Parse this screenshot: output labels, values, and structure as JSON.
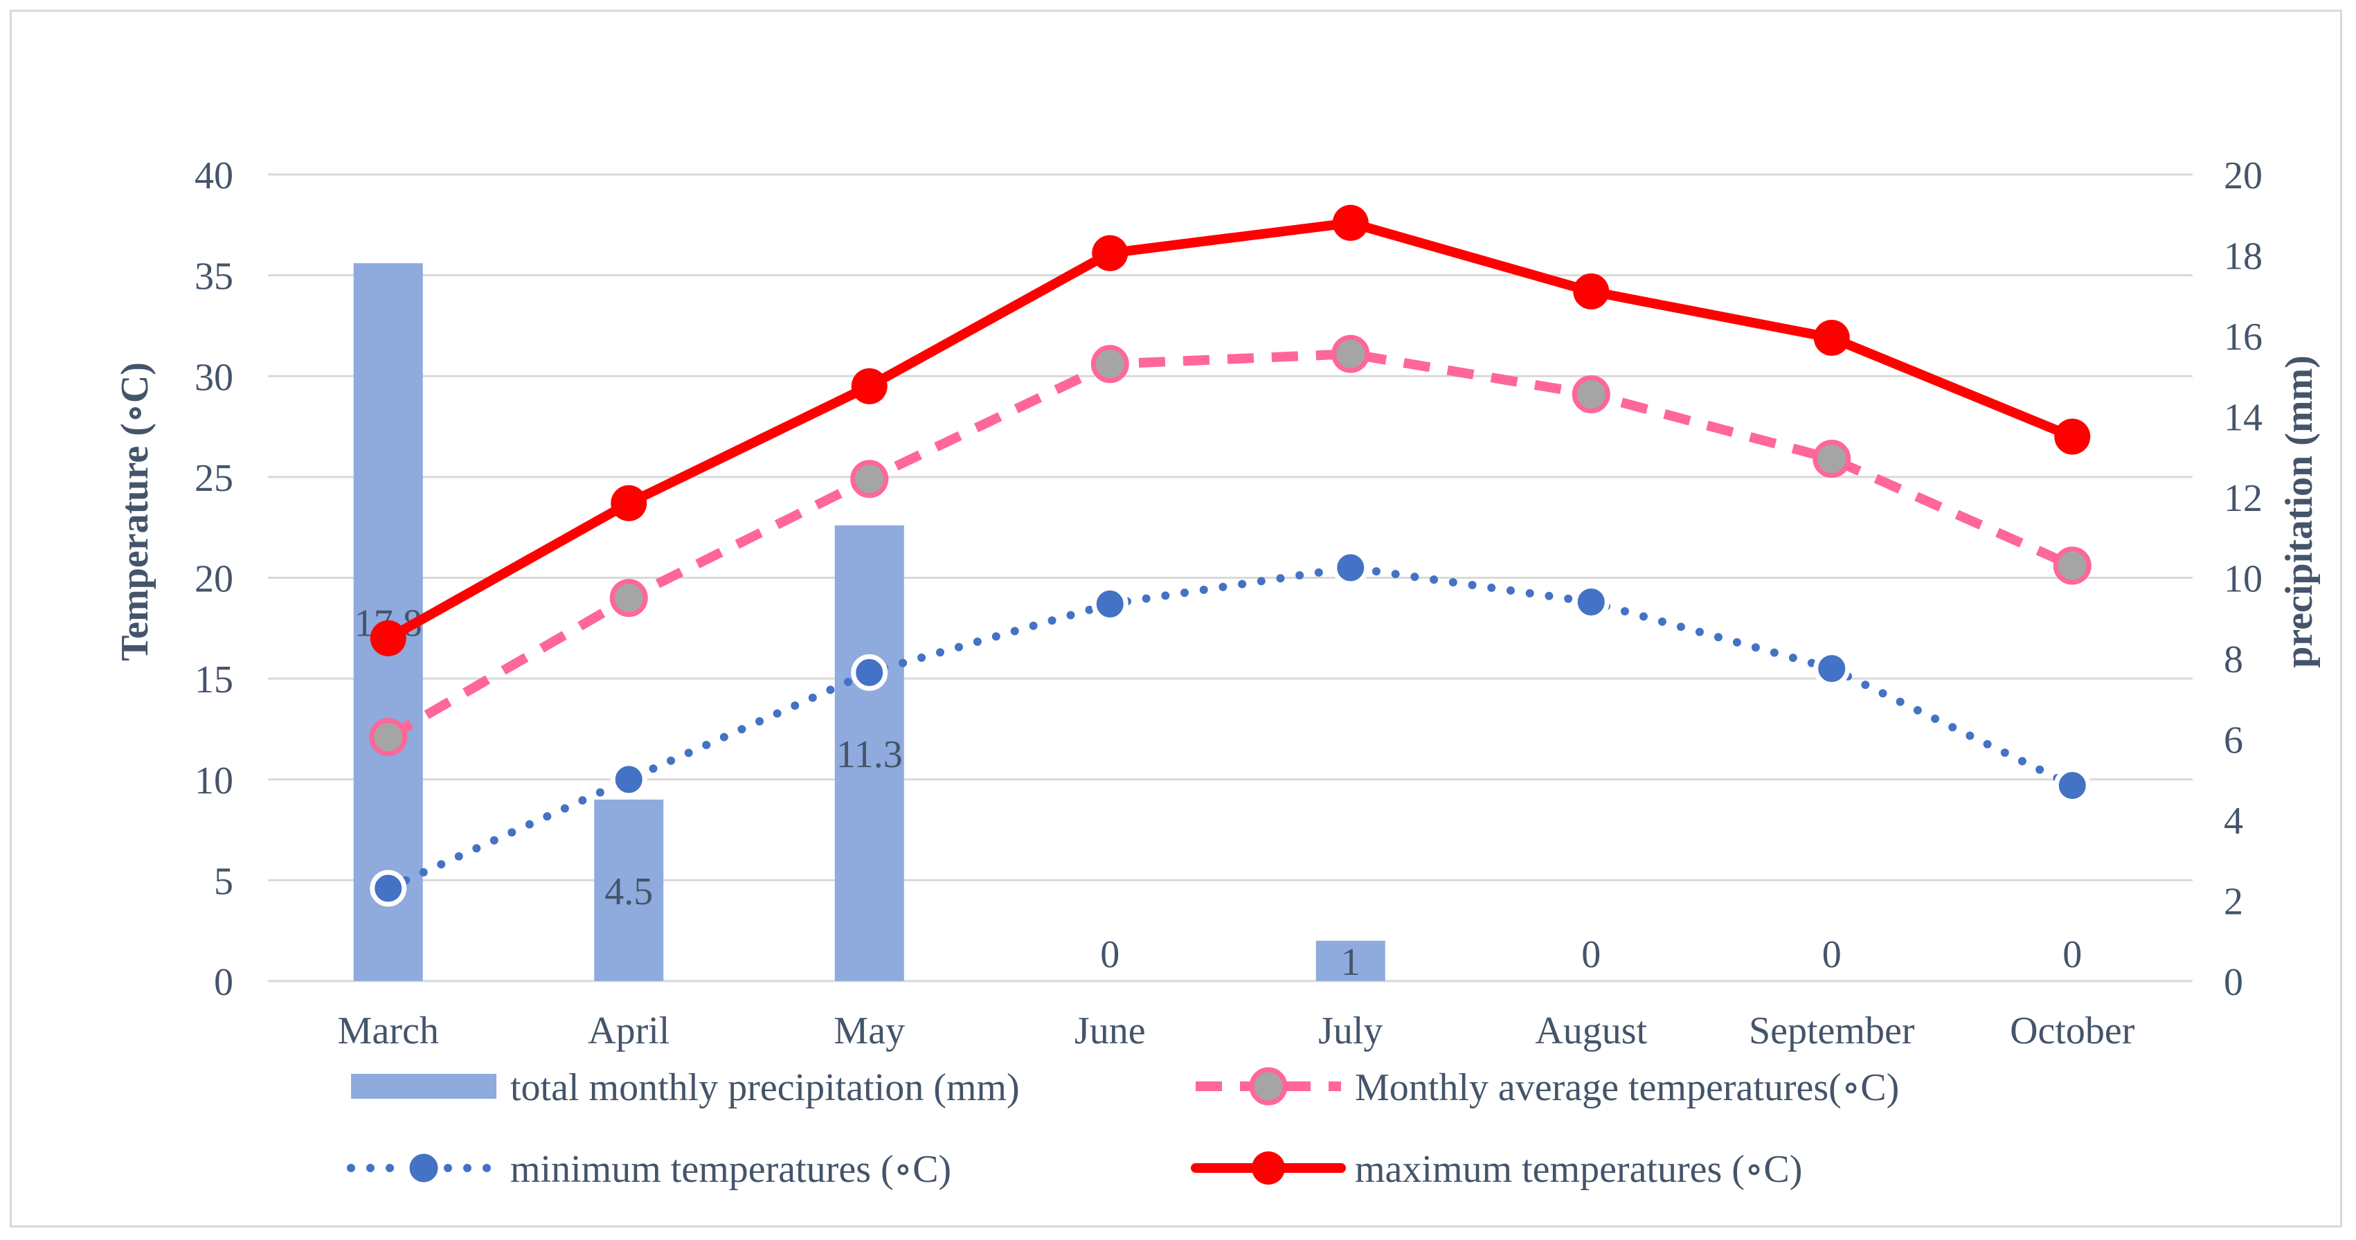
{
  "chart_data": {
    "type": "bar",
    "categories": [
      "March",
      "April",
      "May",
      "June",
      "July",
      "August",
      "September",
      "October"
    ],
    "y_left": {
      "label": "Temperature (∘C)",
      "range": [
        0,
        40
      ],
      "ticks": [
        "0",
        "5",
        "10",
        "15",
        "20",
        "25",
        "30",
        "35",
        "40"
      ]
    },
    "y_right": {
      "label": "precipitation (mm)",
      "range": [
        0,
        20
      ],
      "ticks": [
        "0",
        "2",
        "4",
        "6",
        "8",
        "10",
        "12",
        "14",
        "16",
        "18",
        "20"
      ]
    },
    "grid": "horizontal",
    "legend_position": "bottom",
    "series": [
      {
        "name": "total monthly precipitation (mm)",
        "type": "bar",
        "axis": "right",
        "color": "#8faadc",
        "values": [
          17.8,
          4.5,
          11.3,
          0,
          1,
          0,
          0,
          0
        ],
        "data_labels": [
          "17.8",
          "4.5",
          "11.3",
          "0",
          "1",
          "0",
          "0",
          "0"
        ]
      },
      {
        "name": "Monthly average temperatures(∘C)",
        "type": "line",
        "style": "dashed",
        "axis": "left",
        "color": "#ff6699",
        "marker_color": "#a5a5a5",
        "values": [
          12.1,
          19.0,
          24.9,
          30.6,
          31.1,
          29.1,
          25.9,
          20.6
        ]
      },
      {
        "name": "minimum temperatures (∘C)",
        "type": "line",
        "style": "dotted",
        "axis": "left",
        "color": "#4472c4",
        "marker_color": "#4472c4",
        "values": [
          4.6,
          10.0,
          15.3,
          18.7,
          20.5,
          18.8,
          15.5,
          9.7
        ]
      },
      {
        "name": "maximum temperatures (∘C)",
        "type": "line",
        "style": "solid",
        "axis": "left",
        "color": "#ff0000",
        "marker_color": "#ff0000",
        "values": [
          17.0,
          23.7,
          29.5,
          36.1,
          37.6,
          34.2,
          31.9,
          27.0
        ]
      }
    ]
  }
}
